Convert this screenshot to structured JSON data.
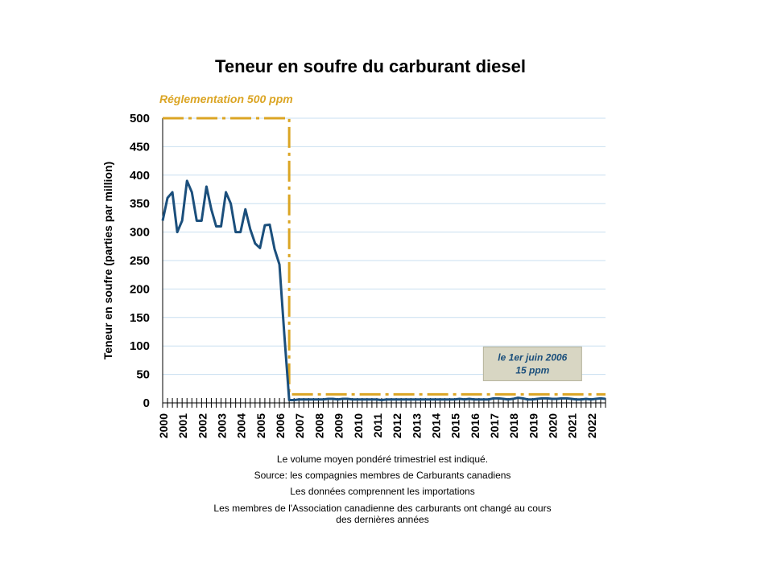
{
  "chart_data": {
    "type": "line",
    "title": "Teneur en soufre du carburant diesel",
    "ylabel": "Teneur en soufre (parties par million)",
    "xlabel": "",
    "ylim": [
      0,
      500
    ],
    "yticks": [
      "0",
      "50",
      "100",
      "150",
      "200",
      "250",
      "300",
      "350",
      "400",
      "450",
      "500"
    ],
    "xticks": [
      "2000",
      "2001",
      "2002",
      "2003",
      "2004",
      "2005",
      "2006",
      "2007",
      "2008",
      "2009",
      "2010",
      "2011",
      "2012",
      "2013",
      "2014",
      "2015",
      "2016",
      "2017",
      "2018",
      "2019",
      "2020",
      "2021",
      "2022"
    ],
    "x_range": [
      2000.0,
      2022.75
    ],
    "grid": true,
    "colors": {
      "series": "#1b4f7c",
      "regulation": "#dba524",
      "grid": "#c9dff0",
      "annotation_box": "#d8d6c3",
      "annotation_text": "#1b4f7c"
    },
    "series": [
      {
        "x": [
          2000.0,
          2000.25,
          2000.5,
          2000.75,
          2001.0,
          2001.25,
          2001.5,
          2001.75,
          2002.0,
          2002.25,
          2002.5,
          2002.75,
          2003.0,
          2003.25,
          2003.5,
          2003.75,
          2004.0,
          2004.25,
          2004.5,
          2004.75,
          2005.0,
          2005.25,
          2005.5,
          2005.75,
          2006.0,
          2006.25,
          2006.5,
          2006.75,
          2007.0,
          2007.25,
          2007.5,
          2007.75,
          2008.0,
          2008.25,
          2008.5,
          2008.75,
          2009.0,
          2009.25,
          2009.5,
          2009.75,
          2010.0,
          2010.25,
          2010.5,
          2010.75,
          2011.0,
          2011.25,
          2011.5,
          2011.75,
          2012.0,
          2012.25,
          2012.5,
          2012.75,
          2013.0,
          2013.25,
          2013.5,
          2013.75,
          2014.0,
          2014.25,
          2014.5,
          2014.75,
          2015.0,
          2015.25,
          2015.5,
          2015.75,
          2016.0,
          2016.25,
          2016.5,
          2016.75,
          2017.0,
          2017.25,
          2017.5,
          2017.75,
          2018.0,
          2018.25,
          2018.5,
          2018.75,
          2019.0,
          2019.25,
          2019.5,
          2019.75,
          2020.0,
          2020.25,
          2020.5,
          2020.75,
          2021.0,
          2021.25,
          2021.5,
          2021.75,
          2022.0,
          2022.25,
          2022.5,
          2022.75
        ],
        "y": [
          320,
          360,
          370,
          300,
          320,
          390,
          370,
          320,
          320,
          380,
          340,
          310,
          310,
          370,
          350,
          300,
          300,
          340,
          305,
          280,
          272,
          312,
          313,
          270,
          243,
          120,
          5,
          5,
          6,
          6,
          6,
          6,
          6,
          6,
          7,
          7,
          6,
          7,
          7,
          6,
          6,
          6,
          6,
          6,
          6,
          5,
          6,
          6,
          6,
          6,
          6,
          6,
          6,
          6,
          6,
          6,
          6,
          6,
          6,
          6,
          6,
          7,
          6,
          7,
          6,
          6,
          6,
          6,
          8,
          8,
          7,
          6,
          7,
          9,
          8,
          6,
          6,
          7,
          8,
          8,
          7,
          7,
          8,
          8,
          7,
          6,
          6,
          7,
          6,
          7,
          8,
          7
        ]
      }
    ],
    "regulation": {
      "label": "Réglementation 500 ppm",
      "steps": [
        {
          "x_start": 2000.0,
          "x_end": 2006.5,
          "y": 500
        },
        {
          "x_start": 2006.5,
          "x_end": 2022.75,
          "y": 15
        }
      ]
    },
    "annotation": {
      "line1": "le 1er juin 2006",
      "line2": "15 ppm",
      "x_center": 2019.0,
      "y_center": 70
    }
  },
  "notes": [
    "Le volume moyen pondéré trimestriel est indiqué.",
    "Source: les compagnies membres de Carburants canadiens",
    "Les données comprennent les importations",
    "Les membres de l'Association canadienne des carburants ont changé au cours",
    "des dernières années"
  ]
}
